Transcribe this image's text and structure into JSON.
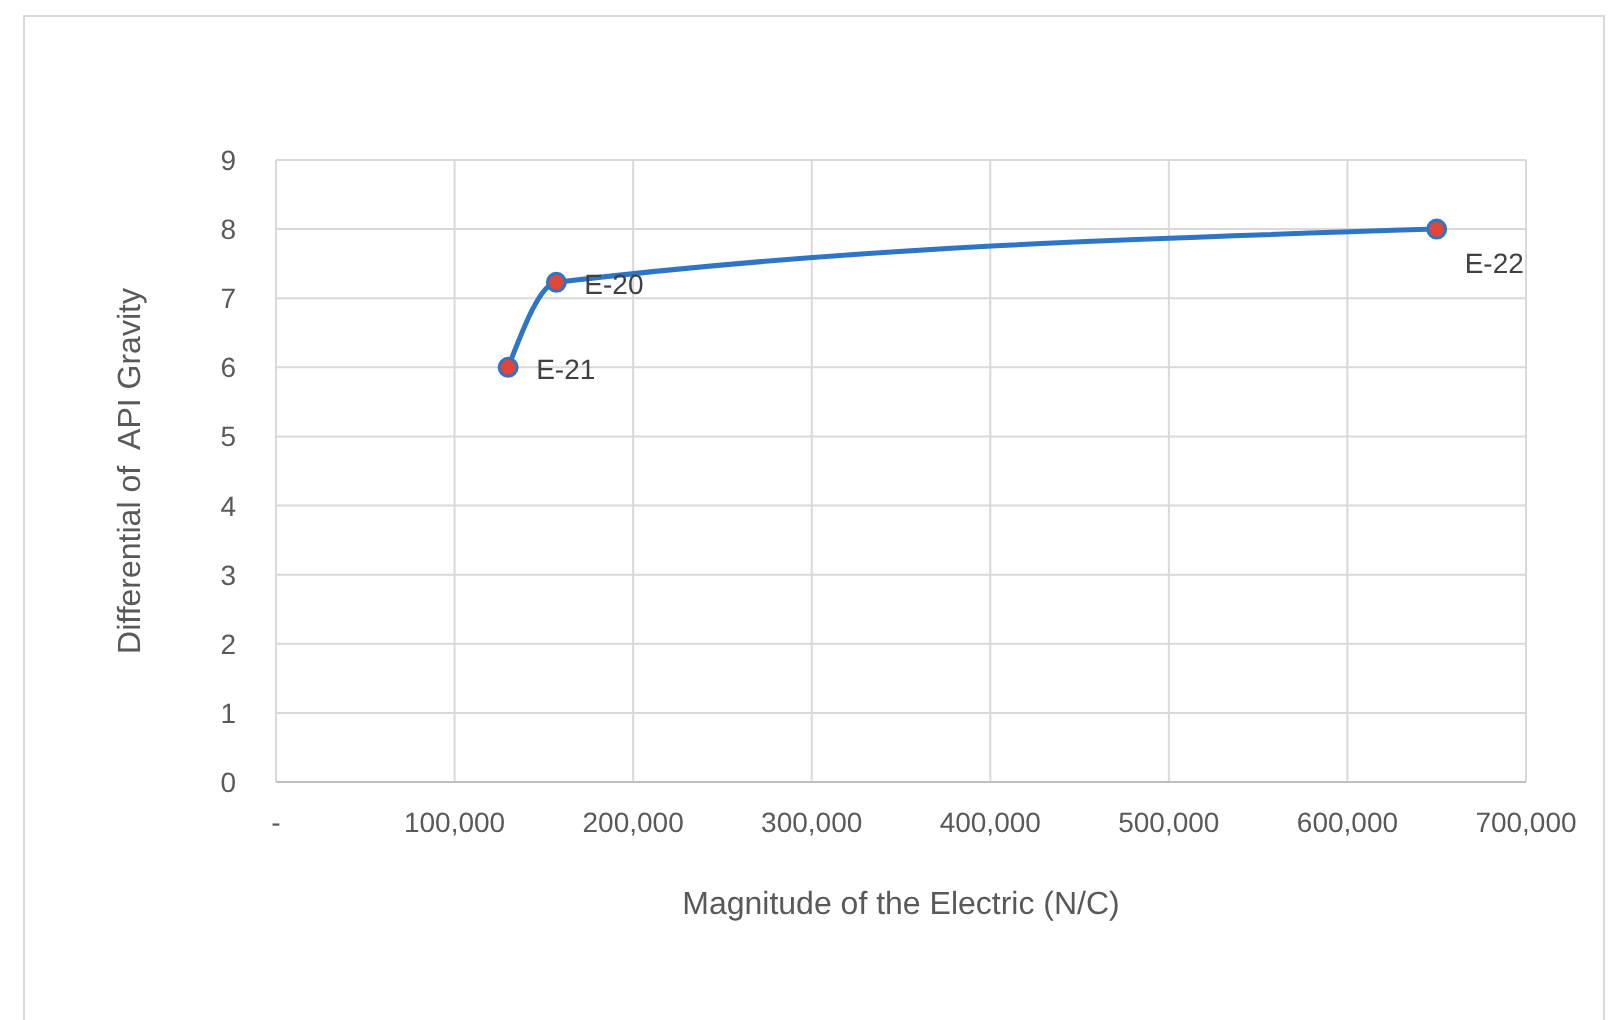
{
  "chart_data": {
    "type": "line",
    "xlabel": "Magnitude of the Electric (N/C)",
    "ylabel": "Differential of  API Gravity",
    "x": [
      130000,
      157000,
      650000
    ],
    "series": [
      {
        "color": "#2e75c6",
        "colors": [
          "#e0463a",
          "#e0463a",
          "#e0463a"
        ],
        "values": [
          6,
          7.23,
          8
        ]
      }
    ],
    "xlim": [
      0,
      700000
    ],
    "xticks": [
      {
        "value": 0,
        "label": "-"
      },
      {
        "value": 100000,
        "label": "100,000"
      },
      {
        "value": 200000,
        "label": "200,000"
      },
      {
        "value": 300000,
        "label": "300,000"
      },
      {
        "value": 400000,
        "label": "400,000"
      },
      {
        "value": 500000,
        "label": "500,000"
      },
      {
        "value": 600000,
        "label": "600,000"
      },
      {
        "value": 700000,
        "label": "700,000"
      }
    ],
    "ylim": [
      0,
      9
    ],
    "yticks": [
      0,
      1,
      2,
      3,
      4,
      5,
      6,
      7,
      8,
      9
    ],
    "grid": true,
    "marker": "circle",
    "line_style": "solid",
    "annotations": [
      {
        "text": "E-21",
        "x": 130000,
        "y": 6
      },
      {
        "text": "E-20",
        "x": 157000,
        "y": 7.23
      },
      {
        "text": "E-22",
        "x": 650000,
        "y": 8
      }
    ]
  }
}
